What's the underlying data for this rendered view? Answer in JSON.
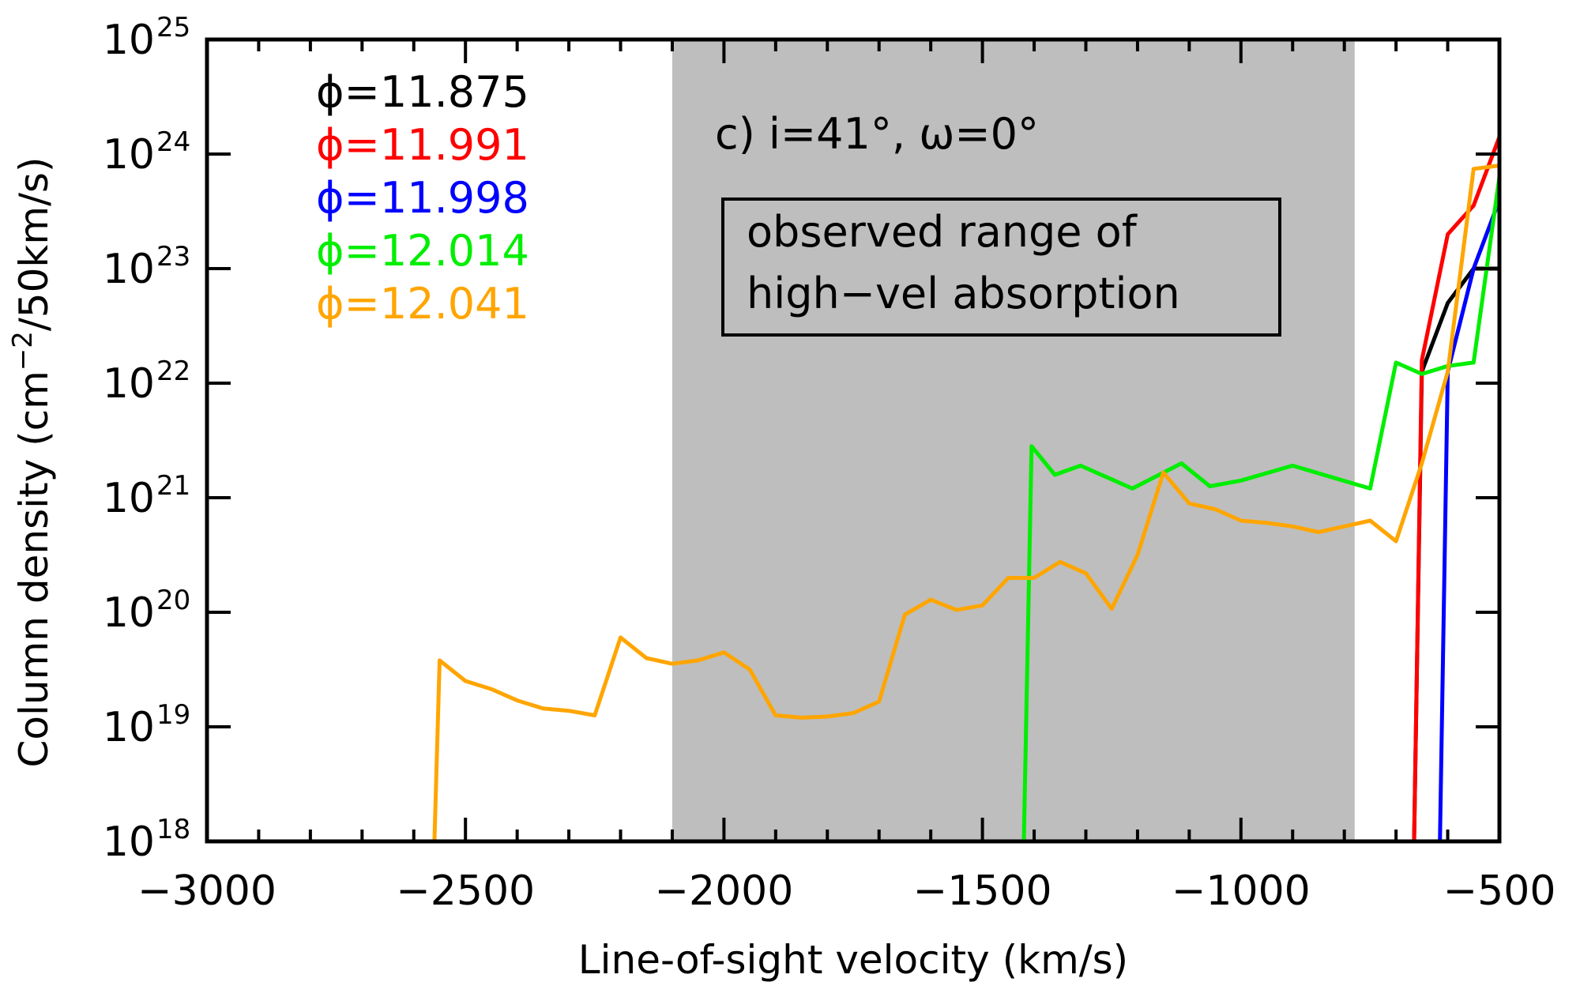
{
  "chart_data": {
    "type": "line",
    "xlabel": "Line-of-sight velocity (km/s)",
    "ylabel_main": "Column density (cm",
    "ylabel_exp": "−2",
    "ylabel_tail": "/50km/s)",
    "xlim": [
      -3000,
      -500
    ],
    "ylim_log10": [
      18,
      25
    ],
    "y_scale": "log",
    "x_ticks": [
      {
        "value": -3000,
        "label": "−3000"
      },
      {
        "value": -2500,
        "label": "−2500"
      },
      {
        "value": -2000,
        "label": "−2000"
      },
      {
        "value": -1500,
        "label": "−1500"
      },
      {
        "value": -1000,
        "label": "−1000"
      },
      {
        "value": -500,
        "label": "−500"
      }
    ],
    "y_ticks": [
      {
        "exp": 18,
        "base": "10",
        "power": "18"
      },
      {
        "exp": 19,
        "base": "10",
        "power": "19"
      },
      {
        "exp": 20,
        "base": "10",
        "power": "20"
      },
      {
        "exp": 21,
        "base": "10",
        "power": "21"
      },
      {
        "exp": 22,
        "base": "10",
        "power": "22"
      },
      {
        "exp": 23,
        "base": "10",
        "power": "23"
      },
      {
        "exp": 24,
        "base": "10",
        "power": "24"
      },
      {
        "exp": 25,
        "base": "10",
        "power": "25"
      }
    ],
    "shaded_band": {
      "x_range": [
        -2100,
        -780
      ],
      "color": "#bebebe",
      "label_line1": "observed range of",
      "label_line2": "high−vel absorption"
    },
    "annotation": "c) i=41°, ω=0°",
    "legend_position": "top-left",
    "series": [
      {
        "name": "ϕ=11.875",
        "color": "#000000",
        "points": [
          [
            -665,
            18
          ],
          [
            -650,
            22.1
          ],
          [
            -600,
            22.7
          ],
          [
            -550,
            23.0
          ],
          [
            -500,
            23.0
          ]
        ]
      },
      {
        "name": "ϕ=11.991",
        "color": "#ff0000",
        "points": [
          [
            -665,
            18
          ],
          [
            -650,
            22.2
          ],
          [
            -600,
            23.3
          ],
          [
            -550,
            23.55
          ],
          [
            -500,
            24.15
          ]
        ]
      },
      {
        "name": "ϕ=11.998",
        "color": "#0000ff",
        "points": [
          [
            -615,
            18
          ],
          [
            -600,
            22.1
          ],
          [
            -550,
            23.0
          ],
          [
            -500,
            23.6
          ]
        ]
      },
      {
        "name": "ϕ=12.014",
        "color": "#00ee00",
        "points": [
          [
            -1420,
            18
          ],
          [
            -1405,
            21.45
          ],
          [
            -1360,
            21.2
          ],
          [
            -1310,
            21.28
          ],
          [
            -1210,
            21.08
          ],
          [
            -1115,
            21.3
          ],
          [
            -1060,
            21.1
          ],
          [
            -1000,
            21.15
          ],
          [
            -900,
            21.28
          ],
          [
            -750,
            21.08
          ],
          [
            -700,
            22.18
          ],
          [
            -650,
            22.08
          ],
          [
            -600,
            22.15
          ],
          [
            -550,
            22.18
          ],
          [
            -500,
            23.8
          ]
        ]
      },
      {
        "name": "ϕ=12.041",
        "color": "#ffa500",
        "points": [
          [
            -2560,
            18
          ],
          [
            -2550,
            19.58
          ],
          [
            -2500,
            19.4
          ],
          [
            -2450,
            19.33
          ],
          [
            -2400,
            19.23
          ],
          [
            -2350,
            19.16
          ],
          [
            -2300,
            19.14
          ],
          [
            -2250,
            19.1
          ],
          [
            -2200,
            19.78
          ],
          [
            -2150,
            19.6
          ],
          [
            -2100,
            19.55
          ],
          [
            -2050,
            19.58
          ],
          [
            -2000,
            19.65
          ],
          [
            -1950,
            19.5
          ],
          [
            -1900,
            19.1
          ],
          [
            -1850,
            19.08
          ],
          [
            -1800,
            19.09
          ],
          [
            -1750,
            19.12
          ],
          [
            -1700,
            19.22
          ],
          [
            -1650,
            19.98
          ],
          [
            -1600,
            20.11
          ],
          [
            -1550,
            20.02
          ],
          [
            -1500,
            20.06
          ],
          [
            -1450,
            20.3
          ],
          [
            -1400,
            20.3
          ],
          [
            -1350,
            20.44
          ],
          [
            -1300,
            20.34
          ],
          [
            -1250,
            20.03
          ],
          [
            -1200,
            20.5
          ],
          [
            -1150,
            21.22
          ],
          [
            -1100,
            20.95
          ],
          [
            -1050,
            20.9
          ],
          [
            -1000,
            20.8
          ],
          [
            -950,
            20.78
          ],
          [
            -900,
            20.75
          ],
          [
            -850,
            20.7
          ],
          [
            -800,
            20.75
          ],
          [
            -750,
            20.8
          ],
          [
            -700,
            20.62
          ],
          [
            -650,
            21.3
          ],
          [
            -600,
            22.1
          ],
          [
            -550,
            23.87
          ],
          [
            -500,
            23.9
          ]
        ]
      }
    ]
  }
}
